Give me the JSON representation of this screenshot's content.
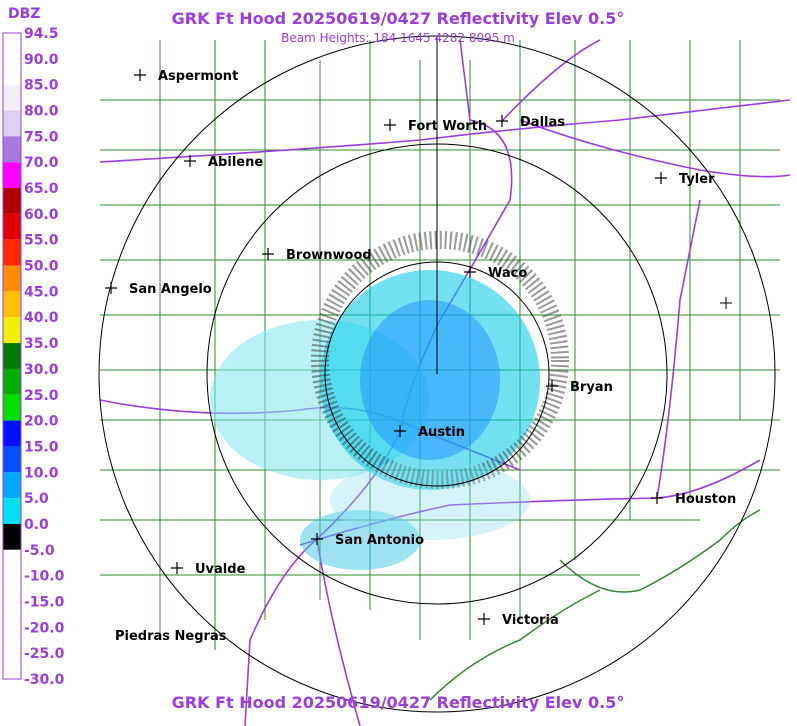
{
  "header": {
    "title": "GRK Ft Hood 20250619/0427 Reflectivity Elev 0.5°",
    "subtitle": "Beam Heights: 184 1645 4282 8095 m"
  },
  "legend": {
    "unit": "DBZ",
    "labels": [
      "94.5",
      "90.0",
      "85.0",
      "80.0",
      "75.0",
      "70.0",
      "65.0",
      "60.0",
      "55.0",
      "50.0",
      "45.0",
      "40.0",
      "35.0",
      "30.0",
      "25.0",
      "20.0",
      "15.0",
      "10.0",
      "5.0",
      "0.0",
      "-5.0",
      "-10.0",
      "-15.0",
      "-20.0",
      "-25.0",
      "-30.0"
    ],
    "colors": [
      "#ffffff",
      "#ffffff",
      "#f2eefa",
      "#ddd0ef",
      "#a878dc",
      "#ff00ff",
      "#b00000",
      "#e00000",
      "#ff2a00",
      "#ff8c00",
      "#ffc000",
      "#f0f000",
      "#007a00",
      "#00b000",
      "#00e000",
      "#0010ff",
      "#0050ff",
      "#00a8ff",
      "#00e0f0",
      "#000000",
      "#ffffff",
      "#ffffff",
      "#ffffff",
      "#ffffff",
      "#ffffff"
    ]
  },
  "cities": [
    "Aspermont",
    "Fort Worth",
    "Dallas",
    "Abilene",
    "Tyler",
    "Brownwood",
    "Waco",
    "San Angelo",
    "Bryan",
    "Austin",
    "Houston",
    "San Antonio",
    "Uvalde",
    "Victoria",
    "Piedras Negras"
  ],
  "footer": {
    "title": "GRK Ft Hood 20250619/0427 Reflectivity Elev 0.5°"
  }
}
